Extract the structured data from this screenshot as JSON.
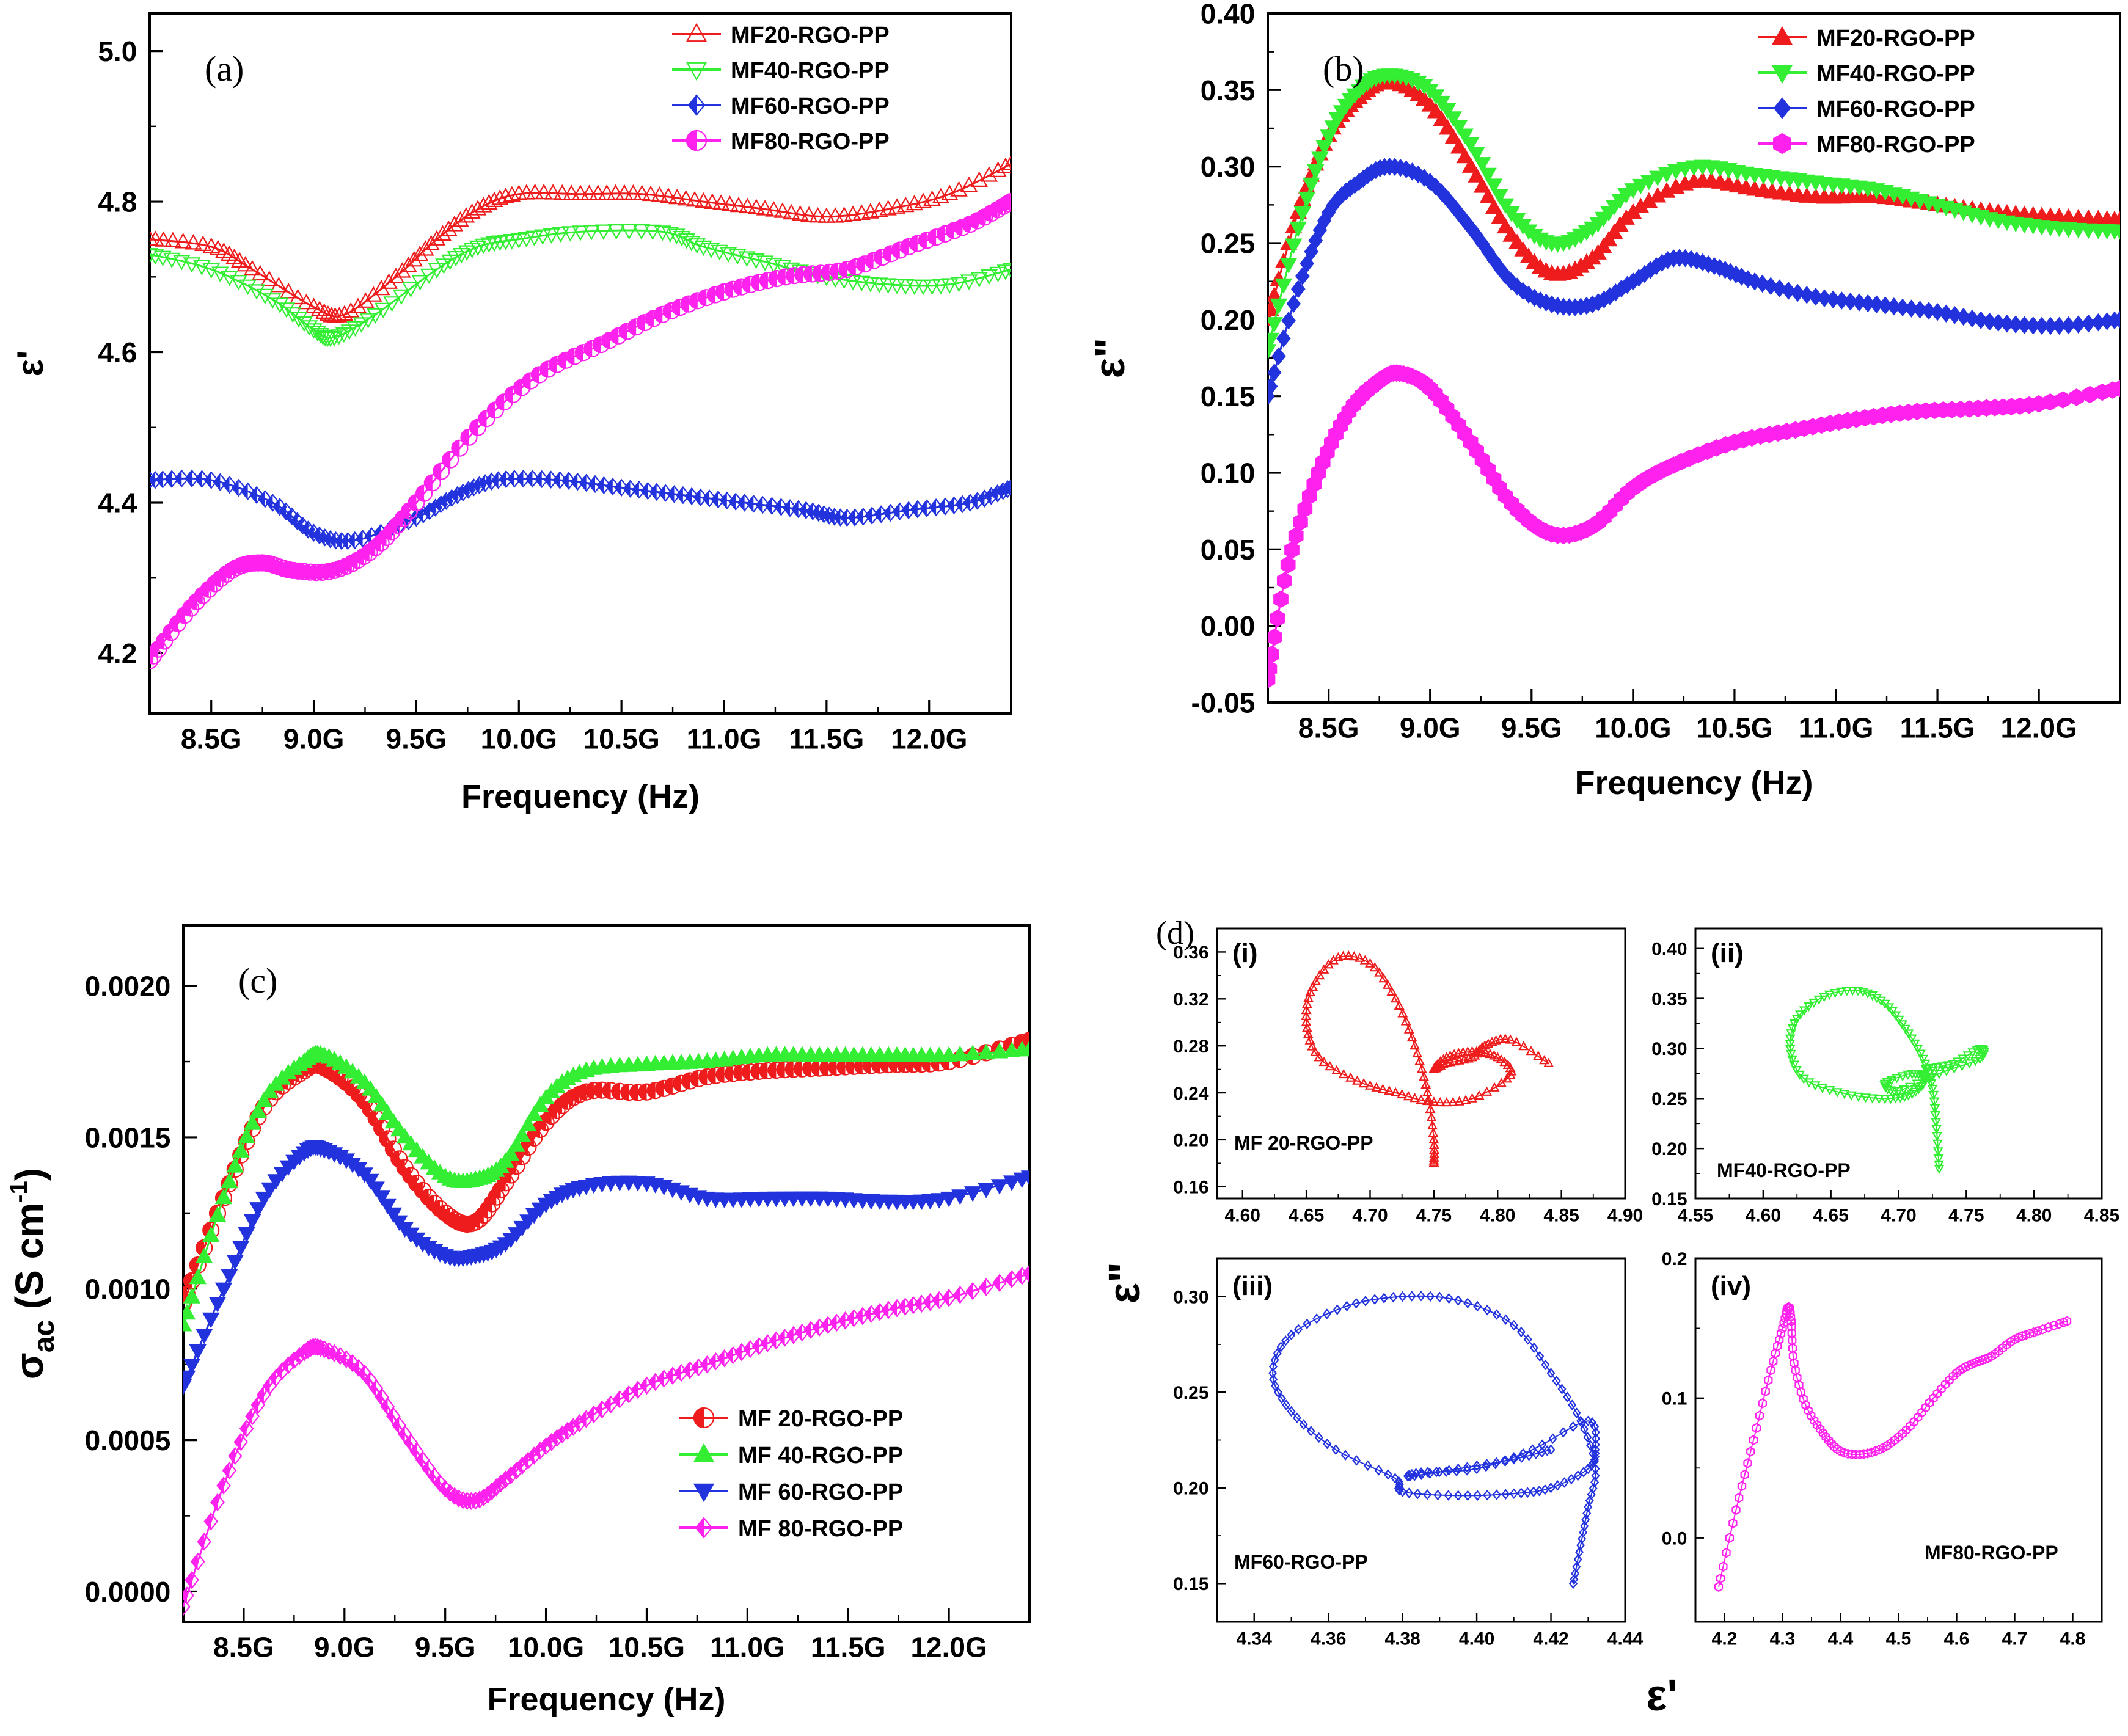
{
  "chart_data": [
    {
      "id": "a",
      "type": "line",
      "panel_label": "(a)",
      "xlabel": "Frequency (Hz)",
      "ylabel": "ε'",
      "xlim": [
        8.2,
        12.4
      ],
      "ylim": [
        4.12,
        5.05
      ],
      "x_ticks": [
        8.5,
        9.0,
        9.5,
        10.0,
        10.5,
        11.0,
        11.5,
        12.0
      ],
      "x_tick_labels": [
        "8.5G",
        "9.0G",
        "9.5G",
        "10.0G",
        "10.5G",
        "11.0G",
        "11.5G",
        "12.0G"
      ],
      "y_ticks": [
        4.2,
        4.4,
        4.6,
        4.8,
        5.0
      ],
      "y_tick_labels": [
        "4.2",
        "4.4",
        "4.6",
        "4.8",
        "5.0"
      ],
      "legend_position": "top-right",
      "series": [
        {
          "name": "MF20-RGO-PP",
          "color": "#ee1c1c",
          "marker": "triangle-up-open",
          "x": [
            8.2,
            8.5,
            8.7,
            9.0,
            9.15,
            9.4,
            9.6,
            9.8,
            10.0,
            10.3,
            10.6,
            10.9,
            11.2,
            11.5,
            11.8,
            12.1,
            12.4
          ],
          "values": [
            4.75,
            4.74,
            4.71,
            4.66,
            4.65,
            4.7,
            4.75,
            4.79,
            4.81,
            4.81,
            4.81,
            4.8,
            4.79,
            4.78,
            4.79,
            4.81,
            4.85
          ]
        },
        {
          "name": "MF40-RGO-PP",
          "color": "#33ee33",
          "marker": "triangle-down-open",
          "x": [
            8.2,
            8.5,
            8.8,
            9.0,
            9.1,
            9.3,
            9.6,
            9.8,
            10.0,
            10.3,
            10.7,
            10.9,
            11.2,
            11.5,
            11.8,
            12.1,
            12.4
          ],
          "values": [
            4.73,
            4.71,
            4.67,
            4.63,
            4.62,
            4.65,
            4.71,
            4.74,
            4.75,
            4.76,
            4.76,
            4.74,
            4.72,
            4.7,
            4.69,
            4.69,
            4.71
          ]
        },
        {
          "name": "MF60-RGO-PP",
          "color": "#2233dd",
          "marker": "diamond-half",
          "x": [
            8.2,
            8.5,
            8.8,
            9.0,
            9.2,
            9.5,
            9.7,
            9.9,
            10.2,
            10.5,
            10.8,
            11.1,
            11.4,
            11.6,
            11.9,
            12.2,
            12.4
          ],
          "values": [
            4.43,
            4.43,
            4.4,
            4.36,
            4.35,
            4.38,
            4.41,
            4.43,
            4.43,
            4.42,
            4.41,
            4.4,
            4.39,
            4.38,
            4.39,
            4.4,
            4.42
          ]
        },
        {
          "name": "MF80-RGO-PP",
          "color": "#ff22ee",
          "marker": "circle-half",
          "x": [
            8.2,
            8.4,
            8.6,
            8.75,
            8.9,
            9.1,
            9.3,
            9.5,
            9.8,
            10.1,
            10.4,
            10.7,
            11.0,
            11.3,
            11.6,
            11.9,
            12.2,
            12.4
          ],
          "values": [
            4.19,
            4.26,
            4.31,
            4.32,
            4.31,
            4.31,
            4.34,
            4.4,
            4.5,
            4.57,
            4.61,
            4.65,
            4.68,
            4.7,
            4.71,
            4.74,
            4.77,
            4.8
          ]
        }
      ]
    },
    {
      "id": "b",
      "type": "line",
      "panel_label": "(b)",
      "xlabel": "Frequency (Hz)",
      "ylabel": "ε\"",
      "xlim": [
        8.2,
        12.4
      ],
      "ylim": [
        -0.05,
        0.4
      ],
      "x_ticks": [
        8.5,
        9.0,
        9.5,
        10.0,
        10.5,
        11.0,
        11.5,
        12.0
      ],
      "x_tick_labels": [
        "8.5G",
        "9.0G",
        "9.5G",
        "10.0G",
        "10.5G",
        "11.0G",
        "11.5G",
        "12.0G"
      ],
      "y_ticks": [
        -0.05,
        0.0,
        0.05,
        0.1,
        0.15,
        0.2,
        0.25,
        0.3,
        0.35,
        0.4
      ],
      "y_tick_labels": [
        "-0.05",
        "0.00",
        "0.05",
        "0.10",
        "0.15",
        "0.20",
        "0.25",
        "0.30",
        "0.35",
        "0.40"
      ],
      "legend_position": "top-right",
      "series": [
        {
          "name": "MF20-RGO-PP",
          "color": "#ee1c1c",
          "marker": "triangle-up",
          "x": [
            8.2,
            8.35,
            8.5,
            8.65,
            8.8,
            9.0,
            9.2,
            9.4,
            9.6,
            9.8,
            10.0,
            10.3,
            10.6,
            10.9,
            11.2,
            11.5,
            11.8,
            12.1,
            12.4
          ],
          "values": [
            0.2,
            0.27,
            0.32,
            0.345,
            0.355,
            0.34,
            0.3,
            0.255,
            0.23,
            0.24,
            0.27,
            0.29,
            0.285,
            0.28,
            0.28,
            0.275,
            0.27,
            0.267,
            0.265
          ]
        },
        {
          "name": "MF40-RGO-PP",
          "color": "#33ee33",
          "marker": "triangle-down",
          "x": [
            8.2,
            8.35,
            8.5,
            8.65,
            8.8,
            9.0,
            9.2,
            9.4,
            9.6,
            9.8,
            10.0,
            10.3,
            10.6,
            10.9,
            11.2,
            11.5,
            11.8,
            12.1,
            12.4
          ],
          "values": [
            0.18,
            0.26,
            0.32,
            0.35,
            0.36,
            0.35,
            0.315,
            0.27,
            0.25,
            0.26,
            0.285,
            0.3,
            0.295,
            0.29,
            0.285,
            0.275,
            0.265,
            0.26,
            0.258
          ]
        },
        {
          "name": "MF60-RGO-PP",
          "color": "#2233dd",
          "marker": "diamond",
          "x": [
            8.2,
            8.35,
            8.5,
            8.65,
            8.8,
            9.0,
            9.2,
            9.4,
            9.6,
            9.8,
            10.0,
            10.2,
            10.4,
            10.6,
            10.9,
            11.2,
            11.5,
            11.8,
            12.1,
            12.4
          ],
          "values": [
            0.15,
            0.22,
            0.27,
            0.29,
            0.3,
            0.29,
            0.26,
            0.225,
            0.21,
            0.21,
            0.225,
            0.24,
            0.235,
            0.225,
            0.215,
            0.21,
            0.205,
            0.198,
            0.196,
            0.2
          ]
        },
        {
          "name": "MF80-RGO-PP",
          "color": "#ff22ee",
          "marker": "hexagon",
          "x": [
            8.2,
            8.3,
            8.45,
            8.6,
            8.75,
            8.85,
            9.0,
            9.2,
            9.4,
            9.6,
            9.8,
            10.0,
            10.2,
            10.5,
            10.8,
            11.1,
            11.4,
            11.7,
            12.0,
            12.4
          ],
          "values": [
            -0.035,
            0.04,
            0.1,
            0.14,
            0.16,
            0.165,
            0.155,
            0.12,
            0.08,
            0.06,
            0.065,
            0.09,
            0.105,
            0.12,
            0.128,
            0.135,
            0.14,
            0.142,
            0.145,
            0.155
          ]
        }
      ]
    },
    {
      "id": "c",
      "type": "line",
      "panel_label": "(c)",
      "xlabel": "Frequency (Hz)",
      "ylabel": "σ",
      "ylabel_sub": "ac",
      "ylabel_unit": " (S cm",
      "ylabel_sup": "-1",
      "ylabel_end": ")",
      "xlim": [
        8.2,
        12.4
      ],
      "ylim": [
        -0.0001,
        0.0022
      ],
      "x_ticks": [
        8.5,
        9.0,
        9.5,
        10.0,
        10.5,
        11.0,
        11.5,
        12.0
      ],
      "x_tick_labels": [
        "8.5G",
        "9.0G",
        "9.5G",
        "10.0G",
        "10.5G",
        "11.0G",
        "11.5G",
        "12.0G"
      ],
      "y_ticks": [
        0.0,
        0.0005,
        0.001,
        0.0015,
        0.002
      ],
      "y_tick_labels": [
        "0.0000",
        "0.0005",
        "0.0010",
        "0.0015",
        "0.0020"
      ],
      "legend_position": "bottom-right",
      "series": [
        {
          "name": "MF 20-RGO-PP",
          "color": "#ee1c1c",
          "marker": "circle-half",
          "x": [
            8.2,
            8.4,
            8.6,
            8.8,
            8.9,
            9.1,
            9.3,
            9.5,
            9.65,
            9.8,
            10.0,
            10.2,
            10.5,
            10.8,
            11.1,
            11.4,
            11.7,
            12.0,
            12.4
          ],
          "values": [
            0.00095,
            0.0013,
            0.0016,
            0.00172,
            0.00173,
            0.00162,
            0.0014,
            0.00125,
            0.00122,
            0.00135,
            0.00155,
            0.00165,
            0.00165,
            0.0017,
            0.00172,
            0.00173,
            0.00174,
            0.00175,
            0.00182
          ]
        },
        {
          "name": "MF 40-RGO-PP",
          "color": "#33ee33",
          "marker": "triangle-up",
          "x": [
            8.2,
            8.4,
            8.6,
            8.8,
            8.9,
            9.1,
            9.3,
            9.5,
            9.65,
            9.8,
            10.0,
            10.2,
            10.5,
            10.8,
            11.1,
            11.4,
            11.7,
            12.0,
            12.4
          ],
          "values": [
            0.00088,
            0.0013,
            0.00162,
            0.00175,
            0.00177,
            0.00168,
            0.0015,
            0.00137,
            0.00136,
            0.00142,
            0.00163,
            0.00172,
            0.00174,
            0.00175,
            0.00177,
            0.00177,
            0.00177,
            0.00177,
            0.00179
          ]
        },
        {
          "name": "MF 60-RGO-PP",
          "color": "#2233dd",
          "marker": "triangle-down",
          "x": [
            8.2,
            8.4,
            8.6,
            8.8,
            8.9,
            9.1,
            9.3,
            9.5,
            9.65,
            9.8,
            10.0,
            10.2,
            10.5,
            10.8,
            11.1,
            11.4,
            11.7,
            12.0,
            12.4
          ],
          "values": [
            0.00068,
            0.001,
            0.0013,
            0.00145,
            0.00146,
            0.00138,
            0.0012,
            0.00111,
            0.00111,
            0.00115,
            0.00128,
            0.00134,
            0.00135,
            0.0013,
            0.0013,
            0.0013,
            0.00129,
            0.0013,
            0.00137
          ]
        },
        {
          "name": "MF 80-RGO-PP",
          "color": "#ff22ee",
          "marker": "diamond-half",
          "x": [
            8.2,
            8.4,
            8.6,
            8.8,
            8.9,
            9.1,
            9.3,
            9.5,
            9.65,
            9.8,
            10.0,
            10.2,
            10.5,
            10.8,
            11.1,
            11.4,
            11.7,
            12.0,
            12.4
          ],
          "values": [
            -5e-05,
            0.00035,
            0.00065,
            0.00079,
            0.0008,
            0.00072,
            0.00052,
            0.00034,
            0.0003,
            0.00037,
            0.00048,
            0.00057,
            0.00068,
            0.00075,
            0.00082,
            0.00088,
            0.00093,
            0.00097,
            0.00105
          ]
        }
      ]
    },
    {
      "id": "d-i",
      "type": "scatter",
      "panel_label": "(i)",
      "group_label": "(d)",
      "series_label": "MF 20-RGO-PP",
      "xlabel": "ε'",
      "ylabel": "ε\"",
      "xlim": [
        4.58,
        4.9
      ],
      "ylim": [
        0.15,
        0.38
      ],
      "x_ticks": [
        4.6,
        4.65,
        4.7,
        4.75,
        4.8,
        4.85,
        4.9
      ],
      "x_tick_labels": [
        "4.60",
        "4.65",
        "4.70",
        "4.75",
        "4.80",
        "4.85",
        "4.90"
      ],
      "y_ticks": [
        0.16,
        0.2,
        0.24,
        0.28,
        0.32,
        0.36
      ],
      "y_tick_labels": [
        "0.16",
        "0.20",
        "0.24",
        "0.28",
        "0.32",
        "0.36"
      ],
      "color": "#ee1c1c",
      "marker": "triangle-up-open",
      "x": [
        4.75,
        4.75,
        4.745,
        4.735,
        4.72,
        4.7,
        4.675,
        4.655,
        4.65,
        4.66,
        4.69,
        4.72,
        4.75,
        4.78,
        4.81,
        4.8,
        4.78,
        4.76,
        4.75,
        4.76,
        4.78,
        4.79,
        4.81,
        4.84
      ],
      "values": [
        0.18,
        0.2,
        0.24,
        0.28,
        0.32,
        0.35,
        0.355,
        0.33,
        0.3,
        0.27,
        0.25,
        0.24,
        0.232,
        0.235,
        0.255,
        0.27,
        0.275,
        0.27,
        0.26,
        0.265,
        0.27,
        0.28,
        0.285,
        0.265
      ]
    },
    {
      "id": "d-ii",
      "type": "scatter",
      "panel_label": "(ii)",
      "series_label": "MF40-RGO-PP",
      "xlabel": "ε'",
      "ylabel": "ε\"",
      "xlim": [
        4.55,
        4.85
      ],
      "ylim": [
        0.15,
        0.42
      ],
      "x_ticks": [
        4.55,
        4.6,
        4.65,
        4.7,
        4.75,
        4.8,
        4.85
      ],
      "x_tick_labels": [
        "4.55",
        "4.60",
        "4.65",
        "4.70",
        "4.75",
        "4.80",
        "4.85"
      ],
      "y_ticks": [
        0.15,
        0.2,
        0.25,
        0.3,
        0.35,
        0.4
      ],
      "y_tick_labels": [
        "0.15",
        "0.20",
        "0.25",
        "0.30",
        "0.35",
        "0.40"
      ],
      "color": "#33ee33",
      "marker": "triangle-down-open",
      "x": [
        4.73,
        4.728,
        4.725,
        4.718,
        4.705,
        4.69,
        4.67,
        4.645,
        4.625,
        4.62,
        4.63,
        4.66,
        4.69,
        4.71,
        4.72,
        4.71,
        4.69,
        4.7,
        4.73,
        4.76,
        4.76,
        4.74,
        4.72
      ],
      "values": [
        0.18,
        0.22,
        0.26,
        0.29,
        0.32,
        0.345,
        0.358,
        0.352,
        0.33,
        0.3,
        0.27,
        0.255,
        0.25,
        0.255,
        0.27,
        0.275,
        0.265,
        0.258,
        0.275,
        0.29,
        0.3,
        0.285,
        0.28
      ]
    },
    {
      "id": "d-iii",
      "type": "scatter",
      "panel_label": "(iii)",
      "series_label": "MF60-RGO-PP",
      "xlabel": "ε'",
      "ylabel": "ε\"",
      "xlim": [
        4.33,
        4.44
      ],
      "ylim": [
        0.13,
        0.32
      ],
      "x_ticks": [
        4.34,
        4.36,
        4.38,
        4.4,
        4.42,
        4.44
      ],
      "x_tick_labels": [
        "4.34",
        "4.36",
        "4.38",
        "4.40",
        "4.42",
        "4.44"
      ],
      "y_ticks": [
        0.15,
        0.2,
        0.25,
        0.3
      ],
      "y_tick_labels": [
        "0.15",
        "0.20",
        "0.25",
        "0.30"
      ],
      "color": "#2233dd",
      "marker": "diamond-open",
      "x": [
        4.426,
        4.428,
        4.43,
        4.432,
        4.428,
        4.42,
        4.41,
        4.395,
        4.38,
        4.365,
        4.35,
        4.345,
        4.35,
        4.362,
        4.378,
        4.38,
        4.395,
        4.41,
        4.42,
        4.43,
        4.432,
        4.43,
        4.415,
        4.4,
        4.385,
        4.382,
        4.395,
        4.41,
        4.42
      ],
      "values": [
        0.15,
        0.17,
        0.19,
        0.21,
        0.235,
        0.26,
        0.285,
        0.298,
        0.3,
        0.295,
        0.28,
        0.26,
        0.24,
        0.22,
        0.205,
        0.198,
        0.196,
        0.197,
        0.2,
        0.21,
        0.22,
        0.235,
        0.22,
        0.21,
        0.208,
        0.206,
        0.21,
        0.215,
        0.22
      ]
    },
    {
      "id": "d-iv",
      "type": "scatter",
      "panel_label": "(iv)",
      "series_label": "MF80-RGO-PP",
      "xlabel": "ε'",
      "ylabel": "ε\"",
      "xlim": [
        4.15,
        4.85
      ],
      "ylim": [
        -0.06,
        0.2
      ],
      "x_ticks": [
        4.2,
        4.3,
        4.4,
        4.5,
        4.6,
        4.7,
        4.8
      ],
      "x_tick_labels": [
        "4.2",
        "4.3",
        "4.4",
        "4.5",
        "4.6",
        "4.7",
        "4.8"
      ],
      "y_ticks": [
        0.0,
        0.1,
        0.2
      ],
      "y_tick_labels": [
        "0.0",
        "0.1",
        "0.2"
      ],
      "color": "#ff22ee",
      "marker": "hexagon-open",
      "x": [
        4.19,
        4.22,
        4.25,
        4.28,
        4.3,
        4.31,
        4.315,
        4.32,
        4.34,
        4.37,
        4.4,
        4.44,
        4.48,
        4.52,
        4.56,
        4.6,
        4.63,
        4.66,
        4.7,
        4.74,
        4.79
      ],
      "values": [
        -0.035,
        0.02,
        0.07,
        0.12,
        0.15,
        0.165,
        0.155,
        0.125,
        0.095,
        0.075,
        0.062,
        0.06,
        0.066,
        0.08,
        0.1,
        0.118,
        0.125,
        0.13,
        0.142,
        0.148,
        0.155
      ]
    }
  ],
  "figure": {
    "panel_d_label": "(d)",
    "panel_d_ylabel": "ε\"",
    "panel_d_xlabel": "ε'"
  }
}
